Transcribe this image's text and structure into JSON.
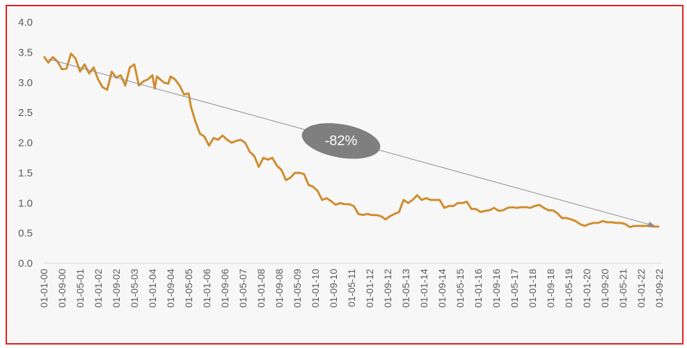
{
  "chart_data": {
    "type": "line",
    "title": "",
    "xlabel": "",
    "ylabel": "",
    "ylim": [
      0,
      4
    ],
    "yticks": [
      "0.0",
      "0.5",
      "1.0",
      "1.5",
      "2.0",
      "2.5",
      "3.0",
      "3.5",
      "4.0"
    ],
    "xtick_labels": [
      "01-01-00",
      "01-09-00",
      "01-05-01",
      "01-01-02",
      "01-09-02",
      "01-05-03",
      "01-01-04",
      "01-09-04",
      "01-05-05",
      "01-01-06",
      "01-09-06",
      "01-05-07",
      "01-01-08",
      "01-09-08",
      "01-05-09",
      "01-01-10",
      "01-09-10",
      "01-05-11",
      "01-01-12",
      "01-09-12",
      "01-05-13",
      "01-01-14",
      "01-09-14",
      "01-05-15",
      "01-01-16",
      "01-09-16",
      "01-05-17",
      "01-01-18",
      "01-09-18",
      "01-05-19",
      "01-01-20",
      "01-09-20",
      "01-05-21",
      "01-01-22",
      "01-09-22"
    ],
    "grid": false,
    "legend": "none",
    "colors": {
      "line": "#d08c2c",
      "annotation": "#7f7f7f",
      "arrow": "#8c8c8c",
      "axis": "#d9d9d9",
      "border": "#e0201c",
      "background": "#f7f7f7"
    },
    "series": [
      {
        "x": [
          "2000-01",
          "2000-03",
          "2000-05",
          "2000-07",
          "2000-09",
          "2000-11",
          "2001-01",
          "2001-03",
          "2001-05",
          "2001-07",
          "2001-09",
          "2001-11",
          "2002-01",
          "2002-03",
          "2002-05",
          "2002-07",
          "2002-09",
          "2002-11",
          "2003-01",
          "2003-03",
          "2003-05",
          "2003-07",
          "2003-09",
          "2003-11",
          "2004-01",
          "2004-02",
          "2004-03",
          "2004-06",
          "2004-08",
          "2004-09",
          "2004-11",
          "2005-01",
          "2005-03",
          "2005-05",
          "2005-06",
          "2005-08",
          "2005-10",
          "2005-12",
          "2006-02",
          "2006-04",
          "2006-06",
          "2006-08",
          "2006-10",
          "2006-12",
          "2007-02",
          "2007-04",
          "2007-06",
          "2007-08",
          "2007-10",
          "2007-12",
          "2008-02",
          "2008-04",
          "2008-06",
          "2008-08",
          "2008-10",
          "2008-12",
          "2009-02",
          "2009-04",
          "2009-06",
          "2009-08",
          "2009-10",
          "2009-12",
          "2010-02",
          "2010-04",
          "2010-06",
          "2010-08",
          "2010-10",
          "2010-12",
          "2011-02",
          "2011-04",
          "2011-06",
          "2011-08",
          "2011-10",
          "2011-12",
          "2012-02",
          "2012-04",
          "2012-06",
          "2012-08",
          "2012-10",
          "2012-12",
          "2013-02",
          "2013-04",
          "2013-06",
          "2013-08",
          "2013-10",
          "2013-12",
          "2014-02",
          "2014-04",
          "2014-06",
          "2014-08",
          "2014-10",
          "2014-12",
          "2015-02",
          "2015-04",
          "2015-06",
          "2015-08",
          "2015-10",
          "2015-12",
          "2016-02",
          "2016-04",
          "2016-06",
          "2016-08",
          "2016-10",
          "2016-12",
          "2017-02",
          "2017-04",
          "2017-06",
          "2017-08",
          "2017-10",
          "2017-12",
          "2018-02",
          "2018-04",
          "2018-06",
          "2018-08",
          "2018-10",
          "2018-12",
          "2019-02",
          "2019-04",
          "2019-06",
          "2019-08",
          "2019-10",
          "2019-12",
          "2020-02",
          "2020-04",
          "2020-06",
          "2020-08",
          "2020-10",
          "2020-12",
          "2021-02",
          "2021-04",
          "2021-06",
          "2021-08",
          "2021-10",
          "2021-12",
          "2022-02",
          "2022-04",
          "2022-06",
          "2022-09"
        ],
        "y": [
          3.43,
          3.33,
          3.42,
          3.35,
          3.22,
          3.23,
          3.48,
          3.4,
          3.18,
          3.3,
          3.15,
          3.25,
          3.05,
          2.92,
          2.88,
          3.18,
          3.08,
          3.12,
          2.95,
          3.25,
          3.3,
          2.95,
          3.02,
          3.05,
          3.12,
          2.9,
          3.1,
          3.0,
          2.98,
          3.1,
          3.05,
          2.95,
          2.8,
          2.82,
          2.6,
          2.35,
          2.15,
          2.1,
          1.95,
          2.08,
          2.05,
          2.12,
          2.05,
          2.0,
          2.03,
          2.05,
          2.0,
          1.85,
          1.78,
          1.6,
          1.75,
          1.72,
          1.75,
          1.62,
          1.55,
          1.38,
          1.42,
          1.5,
          1.5,
          1.48,
          1.3,
          1.27,
          1.2,
          1.05,
          1.08,
          1.03,
          0.97,
          1.0,
          0.98,
          0.98,
          0.95,
          0.82,
          0.8,
          0.82,
          0.8,
          0.8,
          0.78,
          0.73,
          0.78,
          0.82,
          0.85,
          1.05,
          1.0,
          1.05,
          1.13,
          1.05,
          1.08,
          1.05,
          1.05,
          1.05,
          0.92,
          0.95,
          0.95,
          1.0,
          1.0,
          1.02,
          0.9,
          0.9,
          0.85,
          0.87,
          0.88,
          0.92,
          0.87,
          0.88,
          0.92,
          0.93,
          0.92,
          0.93,
          0.93,
          0.92,
          0.95,
          0.97,
          0.92,
          0.88,
          0.88,
          0.83,
          0.75,
          0.75,
          0.73,
          0.7,
          0.65,
          0.62,
          0.65,
          0.67,
          0.67,
          0.7,
          0.68,
          0.68,
          0.67,
          0.67,
          0.65,
          0.6,
          0.62,
          0.62,
          0.62,
          0.62,
          0.61,
          0.61
        ]
      }
    ],
    "annotations": [
      {
        "type": "arrow",
        "label": "-82%",
        "from": {
          "x": "2000-03",
          "y": 3.39
        },
        "to": {
          "x": "2022-07",
          "y": 0.62
        }
      }
    ]
  }
}
